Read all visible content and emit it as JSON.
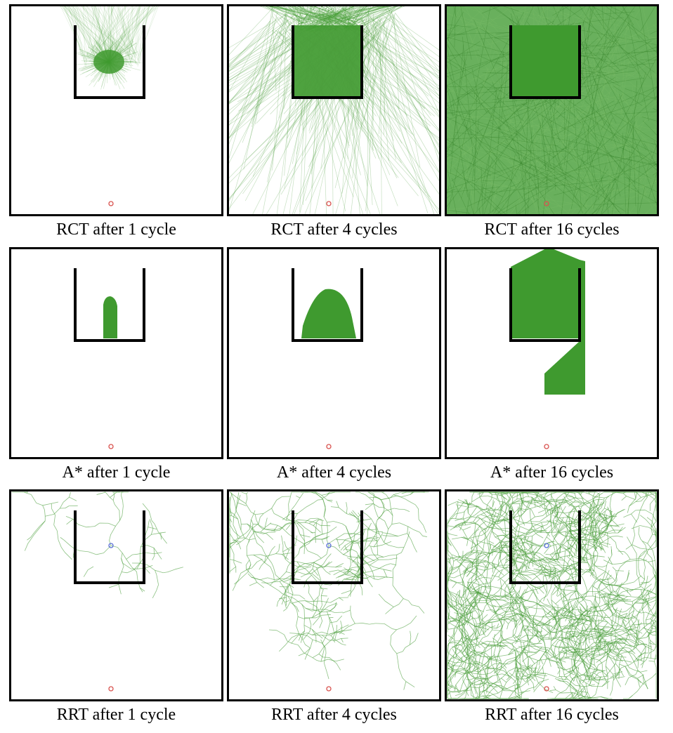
{
  "figure": {
    "colors": {
      "fill": "#3f9a2f",
      "edge": "#4f9f3f",
      "wall": "#000000",
      "start": "#d9534f",
      "goal": "#5a6fd8"
    },
    "rows": [
      {
        "method": "RCT",
        "panels": [
          {
            "caption": "RCT after 1 cycle",
            "cycles": 1
          },
          {
            "caption": "RCT after 4 cycles",
            "cycles": 4
          },
          {
            "caption": "RCT after 16 cycles",
            "cycles": 16
          }
        ]
      },
      {
        "method": "A*",
        "panels": [
          {
            "caption": "A* after 1 cycle",
            "cycles": 1
          },
          {
            "caption": "A* after 4 cycles",
            "cycles": 4
          },
          {
            "caption": "A* after 16 cycles",
            "cycles": 16
          }
        ]
      },
      {
        "method": "RRT",
        "panels": [
          {
            "caption": "RRT after 1 cycle",
            "cycles": 1
          },
          {
            "caption": "RRT after 4 cycles",
            "cycles": 4
          },
          {
            "caption": "RRT after 16 cycles",
            "cycles": 16
          }
        ]
      }
    ]
  }
}
